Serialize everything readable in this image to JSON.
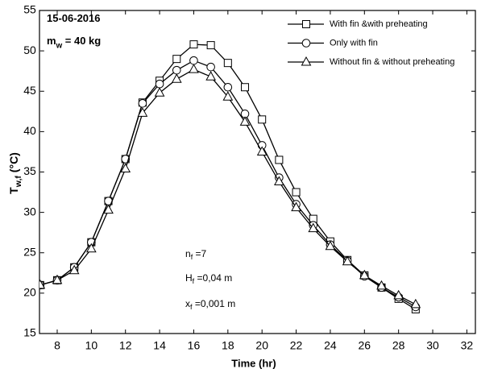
{
  "chart_data": {
    "type": "line",
    "xlabel": "Time (hr)",
    "ylabel": {
      "main": "T",
      "sub": "w,f",
      "tail": " (°C)"
    },
    "annotations": [
      {
        "main": "15-06-2016"
      },
      {
        "main": "m",
        "sub": "w",
        "tail": " = 40 kg"
      },
      {
        "main": "n",
        "sub": "f",
        "tail": " =7"
      },
      {
        "main": "H",
        "sub": "f",
        "tail": " =0,04 m"
      },
      {
        "main": "x",
        "sub": "f",
        "tail": " =0,001 m"
      }
    ],
    "x": [
      7,
      8,
      9,
      10,
      11,
      12,
      13,
      14,
      15,
      16,
      17,
      18,
      19,
      20,
      21,
      22,
      23,
      24,
      25,
      26,
      27,
      28,
      29
    ],
    "series": [
      {
        "name": "With fin &with preheating",
        "color": "#000000",
        "marker": "square",
        "values": [
          21,
          21.6,
          23.2,
          26.3,
          31.4,
          36.6,
          43.6,
          46.3,
          49,
          50.8,
          50.7,
          48.5,
          45.5,
          41.5,
          36.5,
          32.5,
          29.2,
          26.4,
          24.1,
          22.2,
          20.7,
          19.3,
          18
        ]
      },
      {
        "name": "Only with fin",
        "color": "#000000",
        "marker": "circle",
        "values": [
          21,
          21.6,
          23.2,
          26.3,
          31.4,
          36.6,
          43.5,
          45.9,
          47.6,
          48.8,
          48,
          45.5,
          42.2,
          38.3,
          34.3,
          31,
          28.4,
          26,
          24,
          22.1,
          20.7,
          19.5,
          18.3
        ]
      },
      {
        "name": "Without fin & without preheating",
        "color": "#000000",
        "marker": "triangle",
        "values": [
          21,
          21.6,
          22.8,
          25.5,
          30.3,
          35.4,
          42.3,
          44.8,
          46.5,
          47.7,
          46.8,
          44.3,
          41.2,
          37.5,
          33.8,
          30.6,
          28,
          25.8,
          23.9,
          22.2,
          20.9,
          19.7,
          18.6
        ]
      }
    ],
    "xlim": [
      7,
      32.5
    ],
    "xticks": [
      8,
      10,
      12,
      14,
      16,
      18,
      20,
      22,
      24,
      26,
      28,
      30,
      32
    ],
    "ylim": [
      15,
      55
    ],
    "yticks": [
      15,
      20,
      25,
      30,
      35,
      40,
      45,
      50,
      55
    ],
    "legend": "upper right"
  }
}
